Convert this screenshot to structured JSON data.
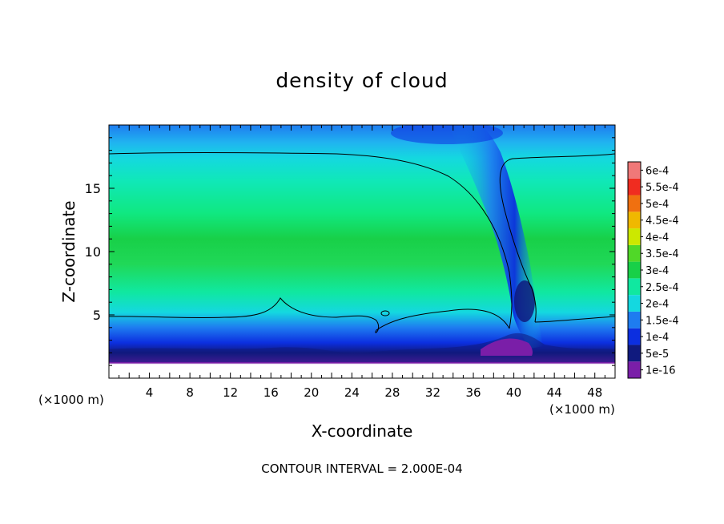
{
  "chart_data": {
    "type": "heatmap",
    "title": "density of cloud",
    "xlabel": "X-coordinate",
    "ylabel": "Z-coordinate",
    "x_unit": "(×1000 m)",
    "y_unit": "(×1000 m)",
    "xlim": [
      0,
      50
    ],
    "ylim": [
      0,
      20
    ],
    "x_ticks": [
      4,
      8,
      12,
      16,
      20,
      24,
      28,
      32,
      36,
      40,
      44,
      48
    ],
    "y_ticks": [
      5,
      10,
      15
    ],
    "footer": "CONTOUR INTERVAL = 2.000E-04",
    "contour_lines": [
      0.0002
    ],
    "colorbar": {
      "labels": [
        "1e-16",
        "5e-5",
        "1e-4",
        "1.5e-4",
        "2e-4",
        "2.5e-4",
        "3e-4",
        "3.5e-4",
        "4e-4",
        "4.5e-4",
        "5e-4",
        "5.5e-4",
        "6e-4"
      ],
      "colors": [
        "#7a1ea8",
        "#101a7e",
        "#0c2fe0",
        "#1e7cf0",
        "#14d8e0",
        "#10e8a0",
        "#18d048",
        "#50d828",
        "#cce800",
        "#f0b800",
        "#f07010",
        "#f02c20",
        "#f07878"
      ]
    },
    "field_summary": {
      "cloud_base_km": 2.2,
      "upper_contour_top_km": 17.7,
      "lower_contour_km": 5,
      "core_band_km": [
        8,
        11
      ],
      "core_density": 0.0003,
      "downdraft_x_km": [
        30,
        42
      ],
      "downdraft_top_x_km": 32
    }
  }
}
